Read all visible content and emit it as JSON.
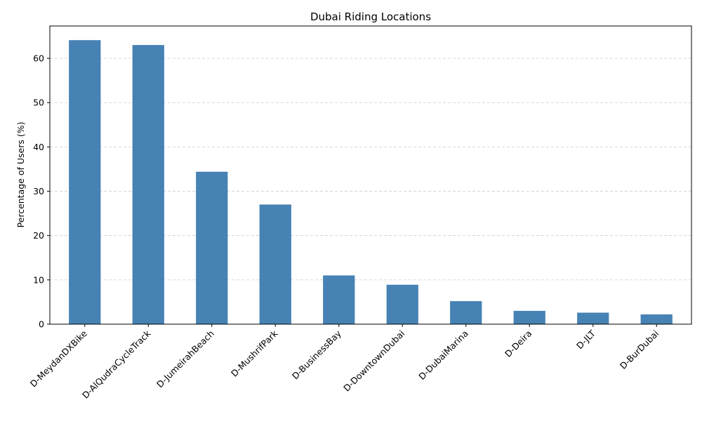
{
  "chart_data": {
    "type": "bar",
    "title": "Dubai Riding Locations",
    "xlabel": "",
    "ylabel": "Percentage of Users (%)",
    "categories": [
      "D-MeydanDXBike",
      "D-AlQudraCycleTrack",
      "D-JumeirahBeach",
      "D-MushrifPark",
      "D-BusinessBay",
      "D-DowntownDubai",
      "D-DubaiMarina",
      "D-Deira",
      "D-JLT",
      "D-BurDubai"
    ],
    "values": [
      64.1,
      63.0,
      34.4,
      27.0,
      11.0,
      8.9,
      5.2,
      3.0,
      2.6,
      2.2
    ],
    "ylim": [
      0,
      67.3
    ],
    "yticks": [
      0,
      10,
      20,
      30,
      40,
      50,
      60
    ],
    "grid": true,
    "bar_color": "#4682b4"
  }
}
